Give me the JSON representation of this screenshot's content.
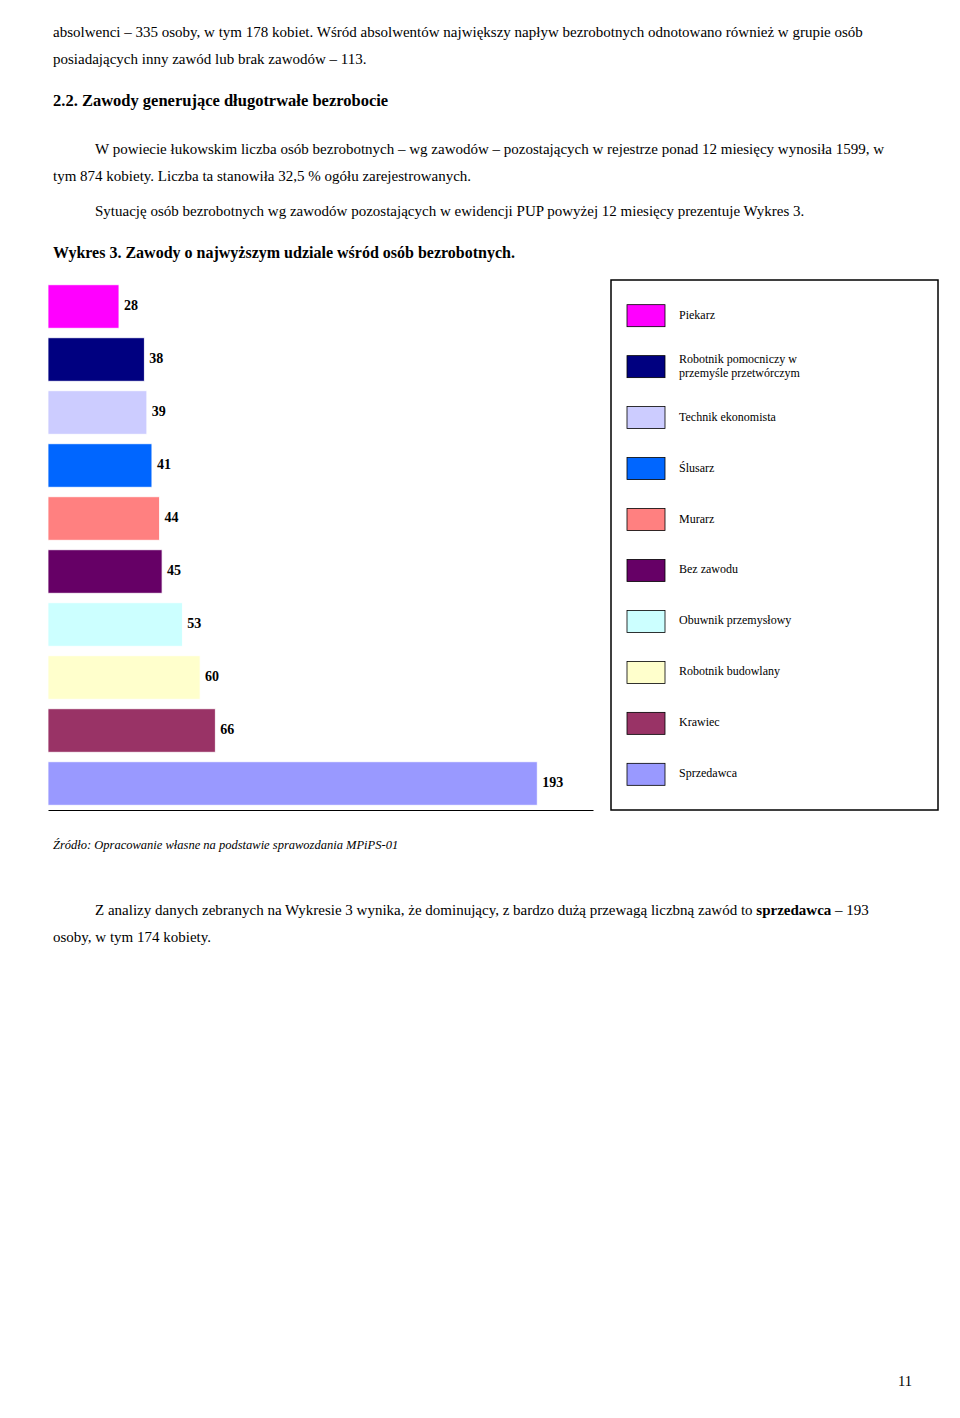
{
  "chart_data": {
    "type": "bar",
    "orientation": "horizontal",
    "title": "Wykres 3. Zawody o najwyższym udziale wśród osób bezrobotnych.",
    "categories": [
      "Sprzedawca",
      "Krawiec",
      "Robotnik budowlany",
      "Obuwnik przemysłowy",
      "Bez zawodu",
      "Murarz",
      "Ślusarz",
      "Technik ekonomista",
      "Robotnik pomocniczy w\nprzemyśle przetwórczym",
      "Piekarz"
    ],
    "values": [
      193,
      66,
      60,
      53,
      45,
      44,
      41,
      39,
      38,
      28
    ],
    "colors": [
      "#9999FF",
      "#993366",
      "#FFFFCC",
      "#CCFFFF",
      "#660066",
      "#FF8080",
      "#0066FF",
      "#CCCCFF",
      "#000080",
      "#FF00FF"
    ],
    "xlim": [
      0,
      215
    ],
    "data_labels": true,
    "tick_labels": false,
    "grid": false,
    "legend": "right",
    "annotations": [
      "absolwenci – 335 osoby, w tym 178 kobiet. Wśród absolwentów największy napływ bezrobotnych odnotowano również w grupie osób posiadających inny zawód lub brak zawodów – 113.",
      "2.2. Zawody generujące długotrwałe bezrobocie",
      "W powiecie łukowskim liczba osób bezrobotnych – wg zawodów – pozostających w rejestrze ponad 12 miesięcy wynosiła 1599, w tym 874 kobiety. Liczba ta stanowiła 32,5 % ogółu zarejestrowanych.",
      "Sytuację osób bezrobotnych wg zawodów pozostających w ewidencji PUP powyżej 12 miesięcy prezentuje Wykres 3.",
      "Źródło: Opracowanie własne na podstawie sprawozdania MPiPS-01",
      "Z analizy danych zebranych na Wykresie 3 wynika, że dominujący, z bardzo dużą przewagą liczbną zawód to ",
      "sprzedawca",
      " – 193 osoby, w tym 174 kobiety.",
      "11"
    ]
  }
}
